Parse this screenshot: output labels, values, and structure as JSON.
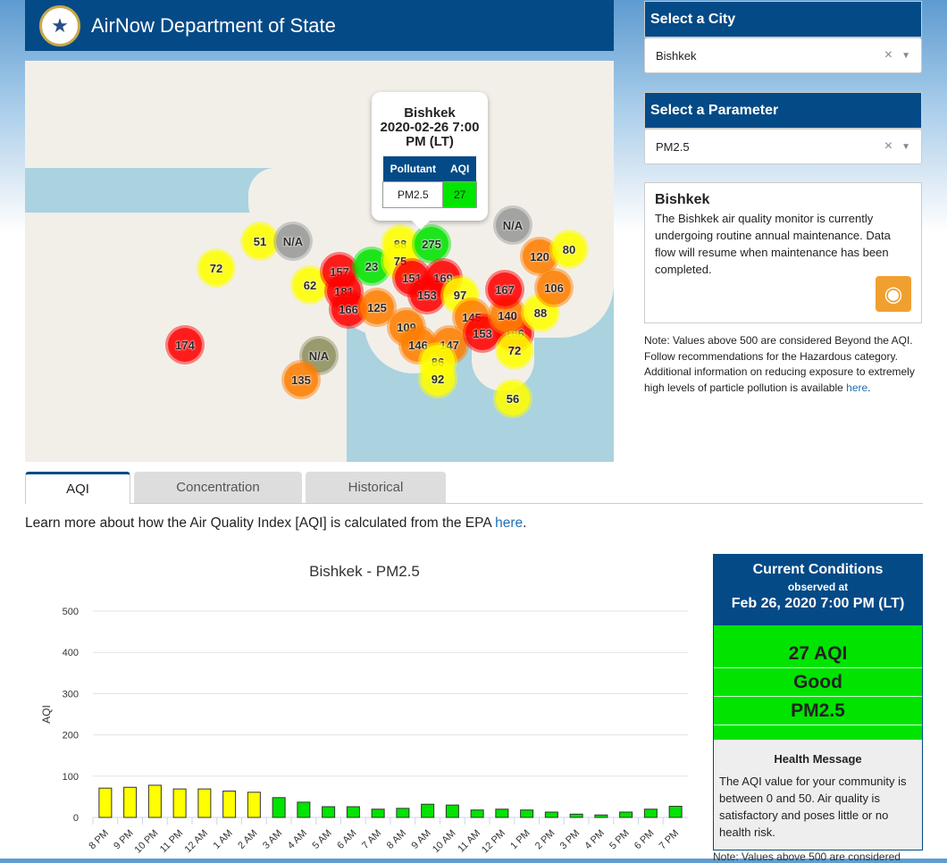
{
  "header": {
    "title": "AirNow Department of State",
    "seal_text": "Department of State seal"
  },
  "map": {
    "markers": [
      {
        "v": "51",
        "c": "#ffff00"
      },
      {
        "v": "N/A",
        "c": "#999999"
      },
      {
        "v": "72",
        "c": "#ffff00"
      },
      {
        "v": "62",
        "c": "#ffff00"
      },
      {
        "v": "157",
        "c": "#ff0000"
      },
      {
        "v": "181",
        "c": "#ff0000"
      },
      {
        "v": "166",
        "c": "#ff0000"
      },
      {
        "v": "125",
        "c": "#ff7e00"
      },
      {
        "v": "23",
        "c": "#00e400"
      },
      {
        "v": "88",
        "c": "#ffff00"
      },
      {
        "v": "75",
        "c": "#ffff00"
      },
      {
        "v": "275",
        "c": "#00e400"
      },
      {
        "v": "151",
        "c": "#ff0000"
      },
      {
        "v": "169",
        "c": "#ff0000"
      },
      {
        "v": "153",
        "c": "#ff0000"
      },
      {
        "v": "97",
        "c": "#ffff00"
      },
      {
        "v": "109",
        "c": "#ff7e00"
      },
      {
        "v": "146",
        "c": "#ff7e00"
      },
      {
        "v": "147",
        "c": "#ff7e00"
      },
      {
        "v": "86",
        "c": "#ffff00"
      },
      {
        "v": "92",
        "c": "#ffff00"
      },
      {
        "v": "145",
        "c": "#ff7e00"
      },
      {
        "v": "153",
        "c": "#ff0000"
      },
      {
        "v": "166",
        "c": "#ff0000"
      },
      {
        "v": "140",
        "c": "#ff7e00"
      },
      {
        "v": "88",
        "c": "#ffff00"
      },
      {
        "v": "72",
        "c": "#ffff00"
      },
      {
        "v": "56",
        "c": "#ffff00"
      },
      {
        "v": "167",
        "c": "#ff0000"
      },
      {
        "v": "120",
        "c": "#ff7e00"
      },
      {
        "v": "80",
        "c": "#ffff00"
      },
      {
        "v": "106",
        "c": "#ff7e00"
      },
      {
        "v": "N/A",
        "c": "#999999"
      },
      {
        "v": "174",
        "c": "#ff0000"
      },
      {
        "v": "N/A",
        "c": "#8f8f5f"
      },
      {
        "v": "135",
        "c": "#ff7e00"
      }
    ],
    "popup": {
      "city": "Bishkek",
      "datetime": "2020-02-26 7:00 PM (LT)",
      "col1": "Pollutant",
      "col2": "AQI",
      "pollutant": "PM2.5",
      "aqi": "27",
      "aqi_color": "#00e400"
    }
  },
  "city_select": {
    "label": "Select a City",
    "value": "Bishkek"
  },
  "param_select": {
    "label": "Select a Parameter",
    "value": "PM2.5"
  },
  "info": {
    "title": "Bishkek",
    "text": "The Bishkek air quality monitor is currently undergoing routine annual maintenance. Data flow will resume when maintenance has been completed."
  },
  "note": {
    "text": "Note: Values above 500 are considered Beyond the AQI. Follow recommendations for the Hazardous category. Additional information on reducing exposure to extremely high levels of particle pollution is available ",
    "link": "here",
    "end": "."
  },
  "tabs": [
    {
      "label": "AQI"
    },
    {
      "label": "Concentration"
    },
    {
      "label": "Historical"
    }
  ],
  "learn": {
    "text": "Learn more about how the Air Quality Index [AQI] is calculated from the EPA ",
    "link": "here",
    "end": "."
  },
  "chart_data": {
    "type": "bar",
    "title": "Bishkek - PM2.5",
    "xlabel": "",
    "ylabel": "AQI",
    "ylim": [
      0,
      500
    ],
    "yticks": [
      0,
      100,
      200,
      300,
      400,
      500
    ],
    "grid": true,
    "categories": [
      "8 PM",
      "9 PM",
      "10 PM",
      "11 PM",
      "12 AM",
      "1 AM",
      "2 AM",
      "3 AM",
      "4 AM",
      "5 AM",
      "6 AM",
      "7 AM",
      "8 AM",
      "9 AM",
      "10 AM",
      "11 AM",
      "12 PM",
      "1 PM",
      "2 PM",
      "3 PM",
      "4 PM",
      "5 PM",
      "6 PM",
      "7 PM"
    ],
    "values": [
      71,
      73,
      78,
      69,
      69,
      64,
      61,
      48,
      37,
      26,
      26,
      20,
      22,
      32,
      30,
      18,
      20,
      18,
      13,
      8,
      6,
      13,
      20,
      27
    ],
    "colors": {
      "good": "#00e400",
      "moderate": "#ffff00"
    }
  },
  "current": {
    "title": "Current Conditions",
    "observed": "observed at",
    "datetime": "Feb 26, 2020 7:00 PM (LT)",
    "aqi": "27 AQI",
    "category": "Good",
    "pollutant": "PM2.5",
    "health_title": "Health Message",
    "health_text": "The AQI value for your community is between 0 and 50. Air quality is satisfactory and poses little or no health risk.",
    "footer": "Note: Values above 500 are considered"
  }
}
